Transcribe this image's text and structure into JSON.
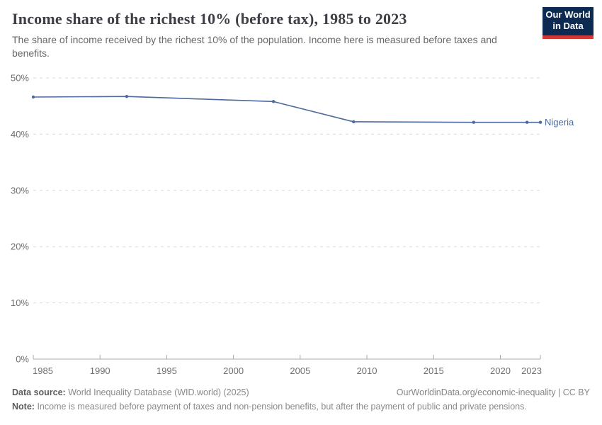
{
  "header": {
    "title": "Income share of the richest 10% (before tax), 1985 to 2023",
    "subtitle": "The share of income received by the richest 10% of the population. Income here is measured before taxes and benefits.",
    "logo": {
      "line1": "Our World",
      "line2": "in Data",
      "bg_color": "#0d2a52",
      "accent_color": "#cf3b34"
    }
  },
  "chart_data": {
    "type": "line",
    "title": "Income share of the richest 10% (before tax), 1985 to 2023",
    "xlabel": "",
    "ylabel": "",
    "xlim": [
      1985,
      2023
    ],
    "ylim": [
      0,
      50
    ],
    "grid": "horizontal-dashed",
    "legend_position": "end-of-line",
    "x_ticks": [
      1985,
      1990,
      1995,
      2000,
      2005,
      2010,
      2015,
      2020,
      2023
    ],
    "x_tick_labels": [
      "1985",
      "1990",
      "1995",
      "2000",
      "2005",
      "2010",
      "2015",
      "2020",
      "2023"
    ],
    "y_ticks": [
      0,
      10,
      20,
      30,
      40,
      50
    ],
    "y_tick_labels": [
      "0%",
      "10%",
      "20%",
      "30%",
      "40%",
      "50%"
    ],
    "series": [
      {
        "name": "Nigeria",
        "color": "#4c6a9c",
        "x": [
          1985,
          1992,
          2003,
          2009,
          2018,
          2022,
          2023
        ],
        "values": [
          46.6,
          46.7,
          45.8,
          42.2,
          42.1,
          42.1,
          42.1
        ]
      }
    ]
  },
  "footer": {
    "source_label": "Data source:",
    "source_text": "World Inequality Database (WID.world) (2025)",
    "credit": "OurWorldinData.org/economic-inequality | CC BY",
    "note_label": "Note:",
    "note_text": "Income is measured before payment of taxes and non-pension benefits, but after the payment of public and private pensions."
  }
}
